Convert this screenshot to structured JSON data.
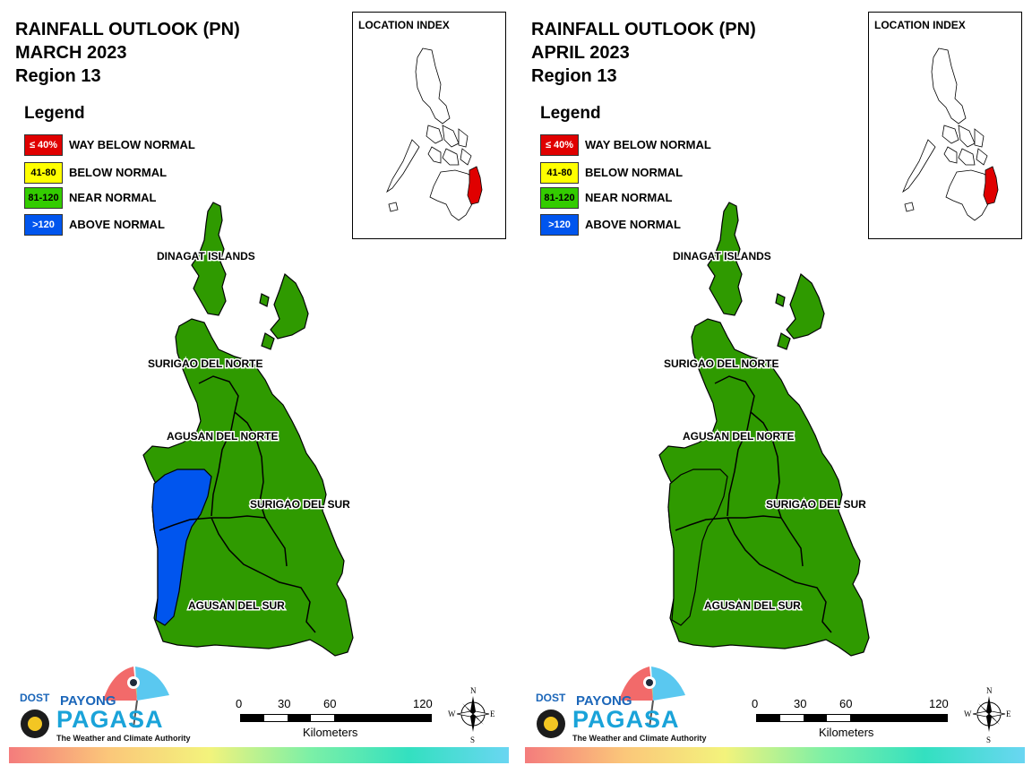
{
  "panels": [
    {
      "title_line1": "RAINFALL OUTLOOK (PN)",
      "title_line2": "MARCH 2023",
      "title_line3": "Region 13",
      "provinces": [
        {
          "name": "DINAGAT ISLANDS",
          "category": "NEAR NORMAL"
        },
        {
          "name": "SURIGAO DEL NORTE",
          "category": "NEAR NORMAL"
        },
        {
          "name": "AGUSAN DEL NORTE",
          "category": "NEAR NORMAL, ABOVE NORMAL (west)"
        },
        {
          "name": "SURIGAO DEL SUR",
          "category": "NEAR NORMAL"
        },
        {
          "name": "AGUSAN DEL SUR",
          "category": "NEAR NORMAL, ABOVE NORMAL (west)"
        }
      ]
    },
    {
      "title_line1": "RAINFALL OUTLOOK (PN)",
      "title_line2": "APRIL 2023",
      "title_line3": "Region 13",
      "provinces": [
        {
          "name": "DINAGAT ISLANDS",
          "category": "NEAR NORMAL"
        },
        {
          "name": "SURIGAO DEL NORTE",
          "category": "NEAR NORMAL"
        },
        {
          "name": "AGUSAN DEL NORTE",
          "category": "NEAR NORMAL"
        },
        {
          "name": "SURIGAO DEL SUR",
          "category": "NEAR NORMAL"
        },
        {
          "name": "AGUSAN DEL SUR",
          "category": "NEAR NORMAL"
        }
      ]
    }
  ],
  "legend": {
    "title": "Legend",
    "items": [
      {
        "code": "≤ 40%",
        "label": "WAY BELOW NORMAL",
        "color": "#e00000",
        "text_color": "#ffffff"
      },
      {
        "code": "41-80",
        "label": "BELOW NORMAL",
        "color": "#ffff00",
        "text_color": "#000000"
      },
      {
        "code": "81-120",
        "label": "NEAR NORMAL",
        "color": "#33cc00",
        "text_color": "#000000"
      },
      {
        "code": ">120",
        "label": "ABOVE NORMAL",
        "color": "#0055ee",
        "text_color": "#ffffff"
      }
    ]
  },
  "inset": {
    "title": "LOCATION INDEX",
    "highlight_color": "#e00000"
  },
  "scale": {
    "ticks": [
      "0",
      "30",
      "60",
      "120"
    ],
    "unit": "Kilometers"
  },
  "compass": {
    "n": "N",
    "e": "E",
    "s": "S",
    "w": "W"
  },
  "logo": {
    "dost": "DOST",
    "payong": "PAYONG",
    "pagasa": "PAGASA",
    "tagline": "The Weather and Climate Authority"
  },
  "colors": {
    "land": "#2f9a00",
    "above_normal": "#0055ee",
    "boundary": "#000000"
  }
}
